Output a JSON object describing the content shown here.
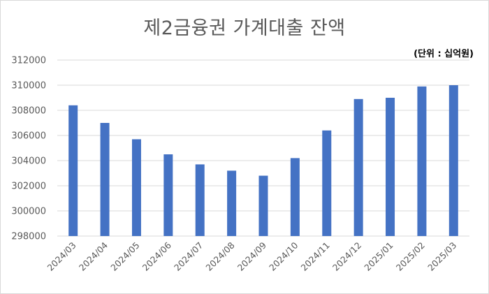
{
  "chart_data": {
    "type": "bar",
    "title": "제2금융권 가계대출 잔액",
    "unit_note": "(단위 : 십억원)",
    "categories": [
      "2024/03",
      "2024/04",
      "2024/05",
      "2024/06",
      "2024/07",
      "2024/08",
      "2024/09",
      "2024/10",
      "2024/11",
      "2024/12",
      "2025/01",
      "2025/02",
      "2025/03"
    ],
    "values": [
      308400,
      307000,
      305700,
      304500,
      303700,
      303200,
      302800,
      304200,
      306400,
      308900,
      309000,
      309900,
      310000
    ],
    "ylim": [
      298000,
      312000
    ],
    "yticks": [
      "298000",
      "300000",
      "302000",
      "304000",
      "306000",
      "308000",
      "310000",
      "312000"
    ],
    "grid": true,
    "bar_color": "#4472c4",
    "legend": "none"
  }
}
